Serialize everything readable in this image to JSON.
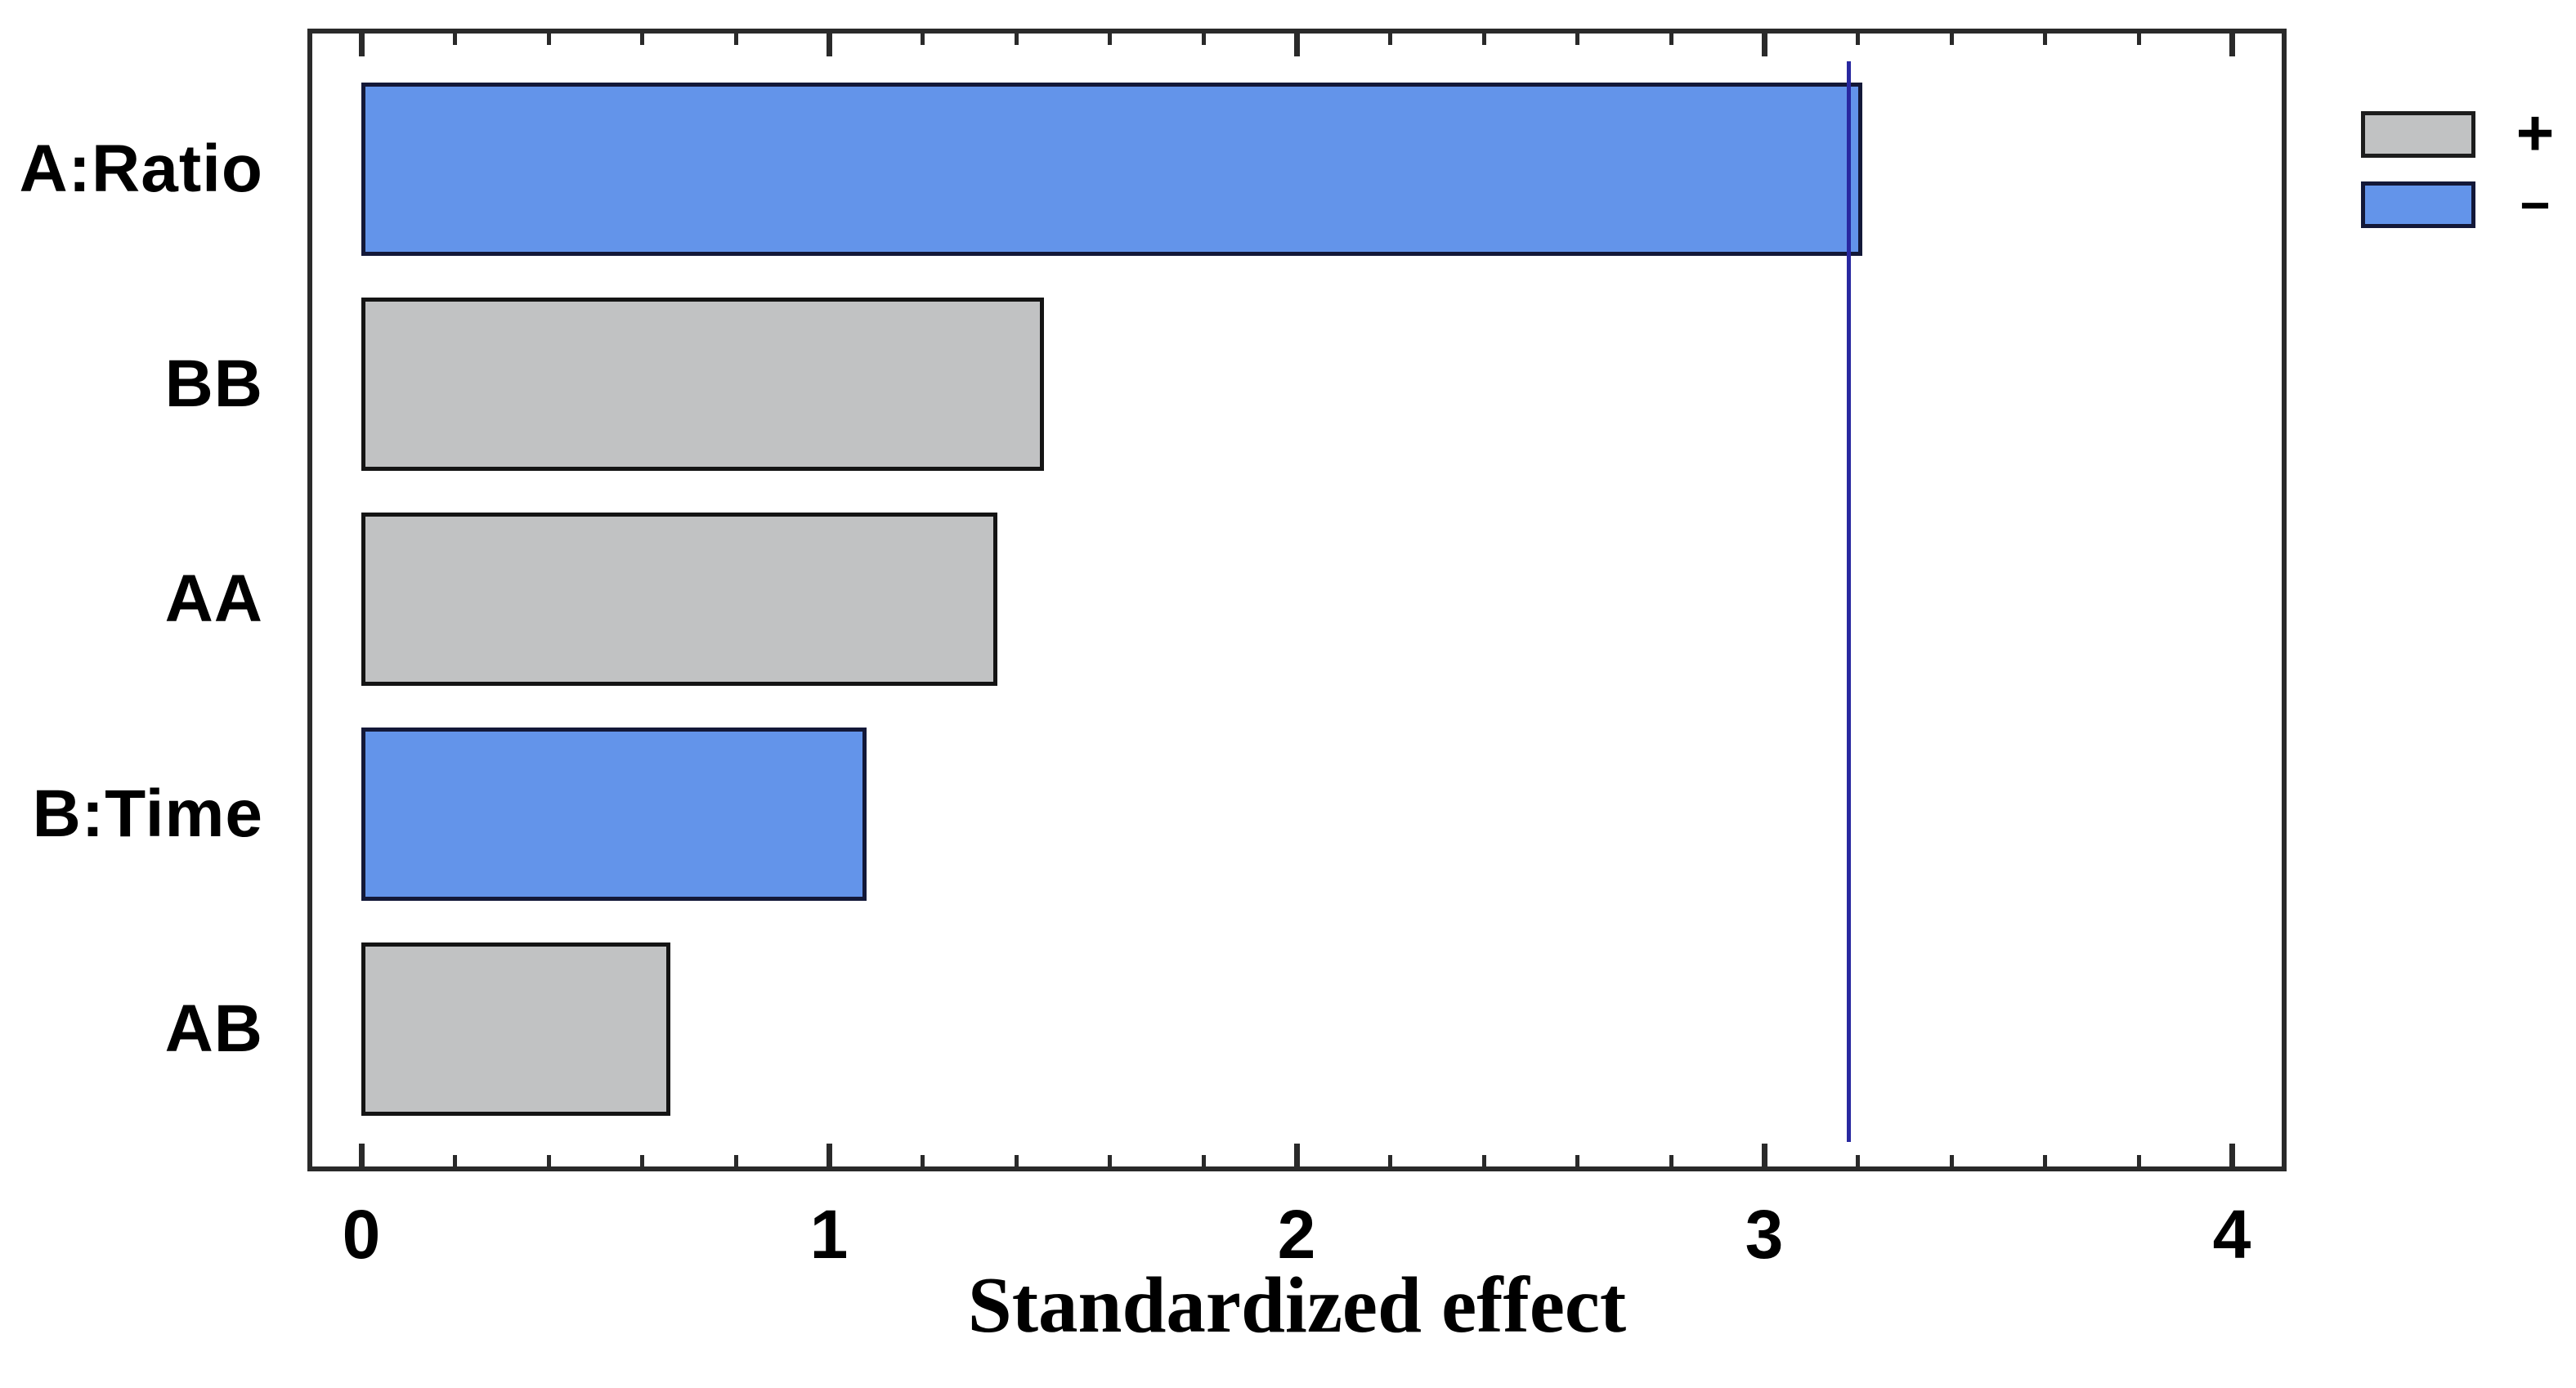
{
  "figure": {
    "kind": "pareto-chart-of-standardized-effects"
  },
  "chart_data": {
    "type": "bar",
    "orientation": "horizontal",
    "title": "",
    "xlabel": "Standardized effect",
    "ylabel": "",
    "categories": [
      "A:Ratio",
      "BB",
      "AA",
      "B:Time",
      "AB"
    ],
    "values": [
      3.21,
      1.46,
      1.36,
      1.08,
      0.66
    ],
    "signs": [
      "-",
      "+",
      "+",
      "-",
      "+"
    ],
    "reference_line": 3.18,
    "xlim": [
      0,
      4
    ],
    "x_major_ticks": [
      0,
      1,
      2,
      3,
      4
    ],
    "x_tick_labels": [
      "0",
      "1",
      "2",
      "3",
      "4"
    ],
    "x_minor_tick_step": 0.2,
    "grid": "off",
    "legend_position": "top-right",
    "colors": {
      "positive_fill": "#c1c2c3",
      "positive_border": "#141414",
      "negative_fill": "#6394ea",
      "negative_border": "#131838",
      "reference_line": "#2828a0",
      "frame": "#2a2a2a",
      "text": "#000000"
    }
  },
  "legend": {
    "plus_label": "+",
    "minus_label": "−",
    "plus_color": "#c1c2c3",
    "minus_color": "#6394ea"
  }
}
